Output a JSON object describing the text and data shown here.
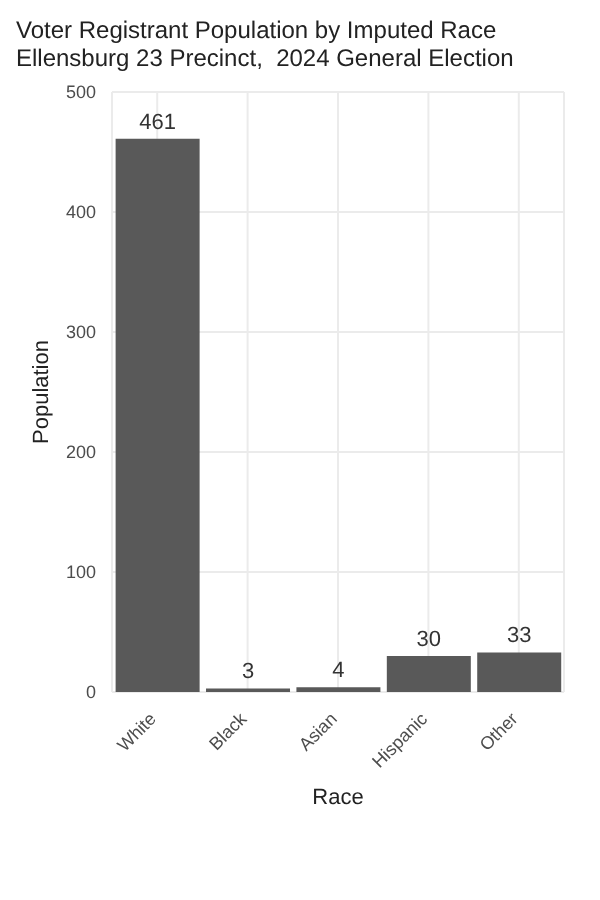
{
  "chart_data": {
    "type": "bar",
    "title": "Voter Registrant Population by Imputed Race",
    "subtitle": "Ellensburg 23 Precinct,  2024 General Election",
    "xlabel": "Race",
    "ylabel": "Population",
    "categories": [
      "White",
      "Black",
      "Asian",
      "Hispanic",
      "Other"
    ],
    "values": [
      461,
      3,
      4,
      30,
      33
    ],
    "color": "#595959",
    "ylim": [
      0,
      500
    ],
    "yticks": [
      0,
      100,
      200,
      300,
      400,
      500
    ],
    "grid": true,
    "data_labels": true
  }
}
